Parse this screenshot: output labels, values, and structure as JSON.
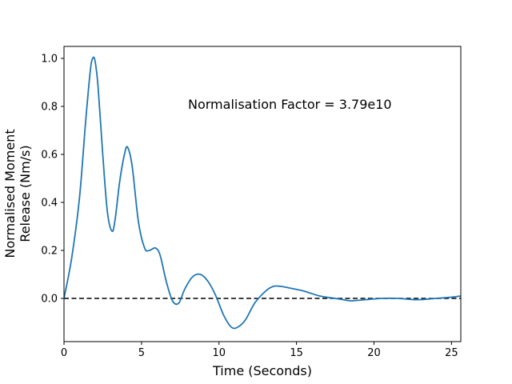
{
  "chart_data": {
    "type": "line",
    "title": "",
    "xlabel": "Time (Seconds)",
    "ylabel_lines": [
      "Normalised Moment",
      "Release (Nm/s)"
    ],
    "xlim": [
      0,
      25.6
    ],
    "ylim": [
      -0.18,
      1.05
    ],
    "xticks": [
      0,
      5,
      10,
      15,
      20,
      25
    ],
    "yticks": [
      0.0,
      0.2,
      0.4,
      0.6,
      0.8,
      1.0
    ],
    "ytick_labels": [
      "0.0",
      "0.2",
      "0.4",
      "0.6",
      "0.8",
      "1.0"
    ],
    "grid": false,
    "annotation": {
      "text": "Normalisation Factor = 3.79e10",
      "x": 8.0,
      "y": 0.81
    },
    "reference_line": {
      "y": 0.0,
      "style": "dashed",
      "color": "#000000"
    },
    "series": [
      {
        "color": "#1f77b4",
        "x": [
          0.0,
          0.5,
          1.0,
          1.4,
          1.7,
          1.85,
          2.0,
          2.2,
          2.5,
          2.8,
          3.1,
          3.3,
          3.6,
          3.9,
          4.1,
          4.4,
          4.8,
          5.2,
          5.5,
          5.9,
          6.2,
          6.6,
          7.0,
          7.4,
          7.8,
          8.3,
          8.8,
          9.3,
          9.8,
          10.3,
          10.8,
          11.2,
          11.7,
          12.3,
          13.0,
          13.5,
          14.0,
          14.8,
          15.5,
          16.5,
          17.5,
          18.0,
          18.5,
          19.5,
          20.5,
          21.5,
          22.5,
          23.0,
          24.0,
          25.0,
          25.6
        ],
        "y": [
          0.0,
          0.17,
          0.42,
          0.74,
          0.95,
          1.0,
          0.99,
          0.88,
          0.6,
          0.36,
          0.28,
          0.33,
          0.49,
          0.6,
          0.63,
          0.55,
          0.32,
          0.21,
          0.2,
          0.21,
          0.18,
          0.07,
          -0.01,
          -0.02,
          0.04,
          0.09,
          0.1,
          0.07,
          0.01,
          -0.07,
          -0.12,
          -0.12,
          -0.09,
          -0.02,
          0.03,
          0.05,
          0.05,
          0.04,
          0.03,
          0.01,
          0.0,
          -0.005,
          -0.01,
          -0.005,
          0.0,
          0.0,
          -0.005,
          -0.005,
          0.0,
          0.005,
          0.01
        ]
      }
    ]
  },
  "colors": {
    "line": "#1f77b4",
    "axes": "#000000",
    "background": "#ffffff"
  }
}
